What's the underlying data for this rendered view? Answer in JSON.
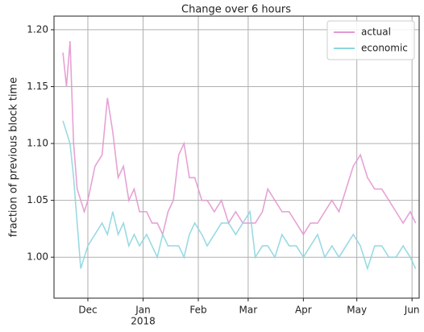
{
  "chart_data": {
    "type": "line",
    "title": "Change over 6 hours",
    "ylabel": "fraction of previous block time",
    "x": [
      "2017-11-17",
      "2017-11-19",
      "2017-11-21",
      "2017-11-23",
      "2017-11-25",
      "2017-11-27",
      "2017-11-29",
      "2017-12-01",
      "2017-12-05",
      "2017-12-09",
      "2017-12-12",
      "2017-12-15",
      "2017-12-18",
      "2017-12-21",
      "2017-12-24",
      "2017-12-27",
      "2017-12-30",
      "2018-01-03",
      "2018-01-06",
      "2018-01-09",
      "2018-01-12",
      "2018-01-15",
      "2018-01-18",
      "2018-01-21",
      "2018-01-24",
      "2018-01-27",
      "2018-01-30",
      "2018-02-03",
      "2018-02-06",
      "2018-02-10",
      "2018-02-14",
      "2018-02-18",
      "2018-02-22",
      "2018-02-26",
      "2018-03-02",
      "2018-03-05",
      "2018-03-09",
      "2018-03-12",
      "2018-03-16",
      "2018-03-20",
      "2018-03-24",
      "2018-03-28",
      "2018-04-01",
      "2018-04-05",
      "2018-04-09",
      "2018-04-13",
      "2018-04-17",
      "2018-04-21",
      "2018-04-25",
      "2018-04-29",
      "2018-05-03",
      "2018-05-07",
      "2018-05-11",
      "2018-05-15",
      "2018-05-19",
      "2018-05-23",
      "2018-05-27",
      "2018-05-31",
      "2018-06-03"
    ],
    "series": [
      {
        "name": "actual",
        "color": "#e398d0",
        "values": [
          1.18,
          1.15,
          1.19,
          1.1,
          1.06,
          1.05,
          1.04,
          1.05,
          1.08,
          1.09,
          1.14,
          1.11,
          1.07,
          1.08,
          1.05,
          1.06,
          1.04,
          1.04,
          1.03,
          1.03,
          1.02,
          1.04,
          1.05,
          1.09,
          1.1,
          1.07,
          1.07,
          1.05,
          1.05,
          1.04,
          1.05,
          1.03,
          1.04,
          1.03,
          1.03,
          1.03,
          1.04,
          1.06,
          1.05,
          1.04,
          1.04,
          1.03,
          1.02,
          1.03,
          1.03,
          1.04,
          1.05,
          1.04,
          1.06,
          1.08,
          1.09,
          1.07,
          1.06,
          1.06,
          1.05,
          1.04,
          1.03,
          1.04,
          1.03
        ]
      },
      {
        "name": "economic",
        "color": "#8fd6e0",
        "values": [
          1.12,
          1.11,
          1.1,
          1.07,
          1.03,
          0.99,
          1.0,
          1.01,
          1.02,
          1.03,
          1.02,
          1.04,
          1.02,
          1.03,
          1.01,
          1.02,
          1.01,
          1.02,
          1.01,
          1.0,
          1.02,
          1.01,
          1.01,
          1.01,
          1.0,
          1.02,
          1.03,
          1.02,
          1.01,
          1.02,
          1.03,
          1.03,
          1.02,
          1.03,
          1.04,
          1.0,
          1.01,
          1.01,
          1.0,
          1.02,
          1.01,
          1.01,
          1.0,
          1.01,
          1.02,
          1.0,
          1.01,
          1.0,
          1.01,
          1.02,
          1.01,
          0.99,
          1.01,
          1.01,
          1.0,
          1.0,
          1.01,
          1.0,
          0.99
        ]
      }
    ],
    "xlim": [
      "2017-11-12",
      "2018-06-05"
    ],
    "xticks": [
      {
        "value": "2017-12-01",
        "label": "Dec"
      },
      {
        "value": "2018-01-01",
        "label": "Jan"
      },
      {
        "value": "2018-02-01",
        "label": "Feb"
      },
      {
        "value": "2018-03-01",
        "label": "Mar"
      },
      {
        "value": "2018-04-01",
        "label": "Apr"
      },
      {
        "value": "2018-05-01",
        "label": "May"
      },
      {
        "value": "2018-06-01",
        "label": "Jun"
      }
    ],
    "x_year_label": "2018",
    "ylim": [
      0.964,
      1.212
    ],
    "yticks": [
      {
        "value": 1.0,
        "label": "1.00"
      },
      {
        "value": 1.05,
        "label": "1.05"
      },
      {
        "value": 1.1,
        "label": "1.10"
      },
      {
        "value": 1.15,
        "label": "1.15"
      },
      {
        "value": 1.2,
        "label": "1.20"
      }
    ],
    "grid": true,
    "legend": "upper right"
  }
}
